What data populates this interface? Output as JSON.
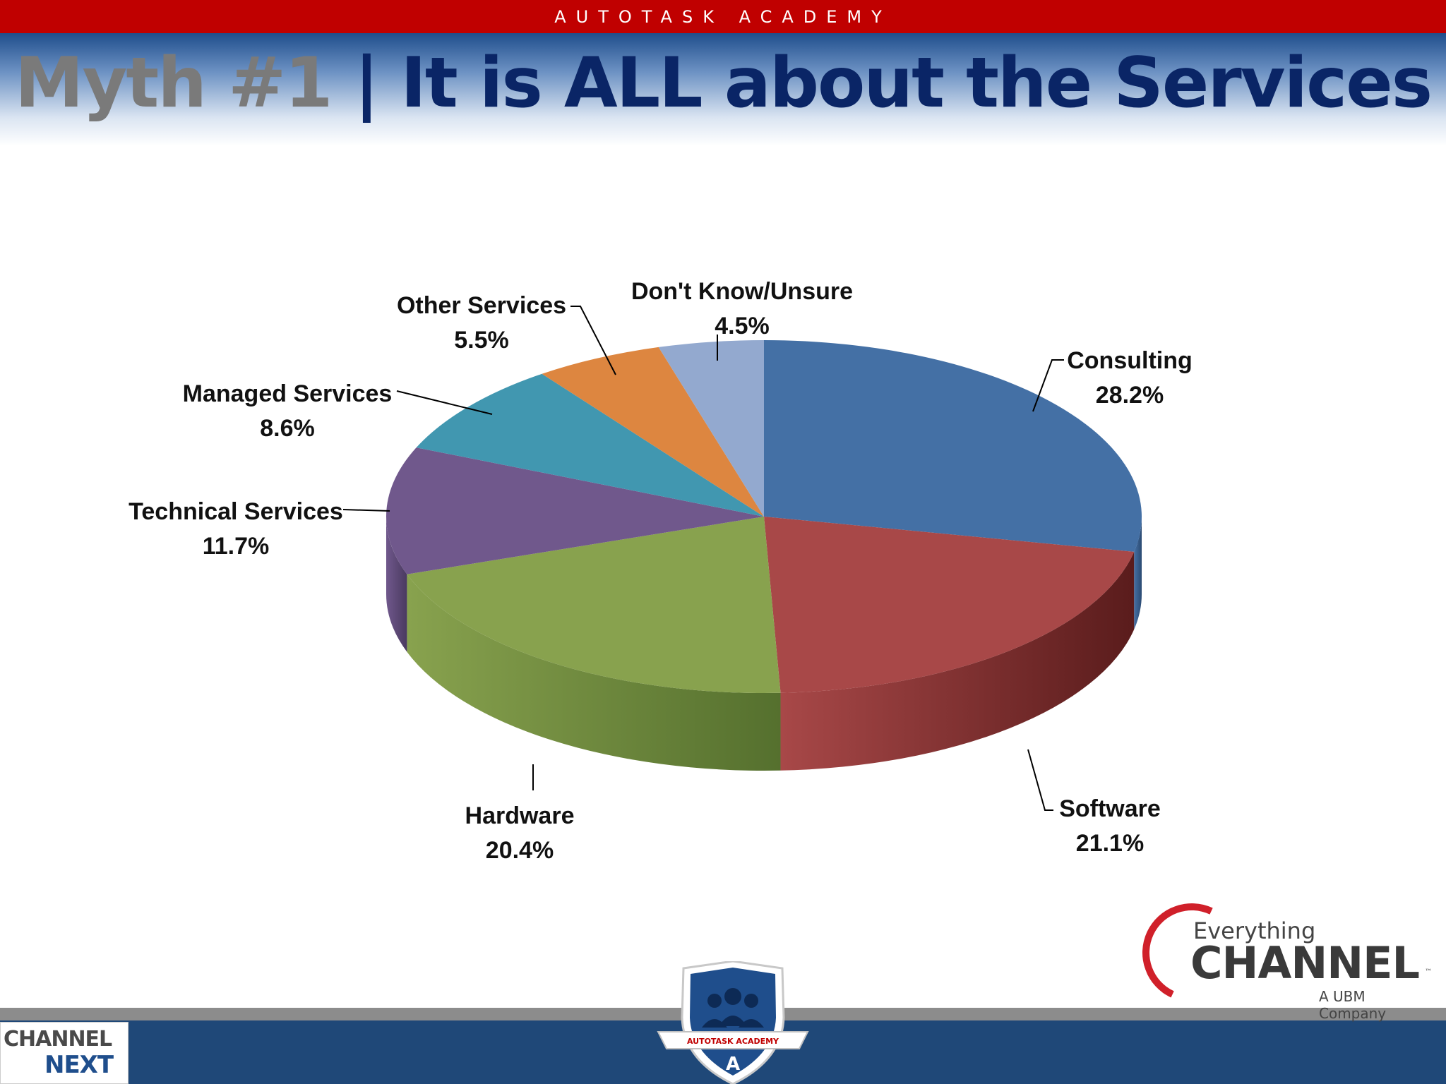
{
  "banner": {
    "text": "AUTOTASK ACADEMY"
  },
  "title": {
    "part_a": "Myth #1",
    "part_b": " | It is ALL about the Services"
  },
  "chart_data": {
    "type": "pie",
    "style": "3d",
    "slices": [
      {
        "label": "Consulting",
        "value": 28.2,
        "value_label": "28.2%",
        "color": "#4470a5",
        "side_color": "#2b4a72"
      },
      {
        "label": "Software",
        "value": 21.1,
        "value_label": "21.1%",
        "color": "#a84848",
        "side_color": "#5a1c1c"
      },
      {
        "label": "Hardware",
        "value": 20.4,
        "value_label": "20.4%",
        "color": "#88a24e",
        "side_color": "#55702e"
      },
      {
        "label": "Technical Services",
        "value": 11.7,
        "value_label": "11.7%",
        "color": "#70588c",
        "side_color": "#4a3a60"
      },
      {
        "label": "Managed Services",
        "value": 8.6,
        "value_label": "8.6%",
        "color": "#4197b0",
        "side_color": "#2a6478"
      },
      {
        "label": "Other Services",
        "value": 5.5,
        "value_label": "5.5%",
        "color": "#dd8640",
        "side_color": "#9a5a28"
      },
      {
        "label": "Don't Know/Unsure",
        "value": 4.5,
        "value_label": "4.5%",
        "color": "#93a9cf",
        "side_color": "#647ca0"
      }
    ],
    "legend": "none",
    "data_labels": "outside-with-leader-lines"
  },
  "footer": {
    "channel_next_line1": "CHANNEL",
    "channel_next_line2": "NEXT",
    "ec_everything": "Everything",
    "ec_channel": "CHANNEL",
    "ec_tm": "™",
    "ec_ubm": "A UBM Company",
    "badge_text": "AUTOTASK ACADEMY"
  },
  "colors": {
    "banner_red": "#c00000",
    "title_grey": "#7a7a7a",
    "title_navy": "#0a2566",
    "footer_blue": "#1f4878"
  }
}
